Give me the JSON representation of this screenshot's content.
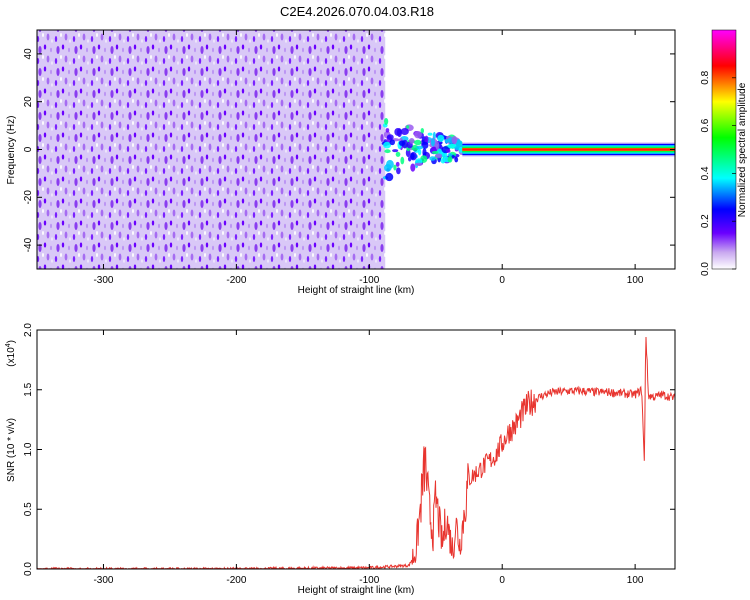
{
  "title": "C2E4.2026.070.04.03.R18",
  "chart_data": [
    {
      "type": "heatmap",
      "xlabel": "Height of straight line (km)",
      "ylabel": "Frequency (Hz)",
      "xlim": [
        -350,
        130
      ],
      "ylim": [
        -50,
        50
      ],
      "xticks": [
        -300,
        -200,
        -100,
        0,
        100
      ],
      "yticks": [
        -40,
        -20,
        0,
        20,
        40
      ],
      "colorbar": {
        "label": "Normalized spectral amplitude",
        "range": [
          0.0,
          1.0
        ],
        "ticks": [
          "0.0",
          "0.2",
          "0.4",
          "0.6",
          "0.8"
        ]
      },
      "regions": [
        {
          "name": "broadband noise",
          "x_range": [
            -350,
            -88
          ],
          "freq_range": [
            -50,
            50
          ],
          "amplitude": 0.1
        },
        {
          "name": "transition",
          "x_range": [
            -88,
            -30
          ],
          "freq_range": [
            -12,
            12
          ],
          "amplitude": 0.35
        },
        {
          "name": "narrow carrier",
          "x_range": [
            -30,
            130
          ],
          "freq_center": 0,
          "freq_halfwidth": 3,
          "amplitude": 0.95
        }
      ]
    },
    {
      "type": "line",
      "xlabel": "Height of straight line (km)",
      "ylabel": "SNR (10 * v/v)",
      "yscale_label": "(x10",
      "yscale_exp": "4",
      "xlim": [
        -350,
        130
      ],
      "ylim": [
        0,
        2.0
      ],
      "xticks": [
        -300,
        -200,
        -100,
        0,
        100
      ],
      "yticks": [
        "0.0",
        "0.5",
        "1.0",
        "1.5",
        "2.0"
      ],
      "color": "#e8352f",
      "series": [
        {
          "name": "SNR",
          "x": [
            -350,
            -200,
            -100,
            -70,
            -65,
            -62,
            -60,
            -58,
            -55,
            -52,
            -50,
            -47,
            -45,
            -42,
            -40,
            -37,
            -35,
            -32,
            -30,
            -27,
            -25,
            -20,
            -15,
            -10,
            -5,
            0,
            5,
            10,
            15,
            20,
            25,
            30,
            35,
            40,
            50,
            60,
            70,
            80,
            90,
            100,
            105,
            107,
            108,
            110,
            115,
            120,
            130
          ],
          "y": [
            0.0,
            0.0,
            0.01,
            0.03,
            0.15,
            0.45,
            0.7,
            0.9,
            0.5,
            0.3,
            0.6,
            0.35,
            0.2,
            0.45,
            0.3,
            0.15,
            0.4,
            0.2,
            0.35,
            0.6,
            0.75,
            0.8,
            0.85,
            0.9,
            0.95,
            1.05,
            1.15,
            1.2,
            1.3,
            1.38,
            1.42,
            1.45,
            1.47,
            1.48,
            1.49,
            1.49,
            1.48,
            1.48,
            1.47,
            1.46,
            1.5,
            0.85,
            2.0,
            1.45,
            1.44,
            1.46,
            1.43
          ]
        }
      ]
    }
  ]
}
